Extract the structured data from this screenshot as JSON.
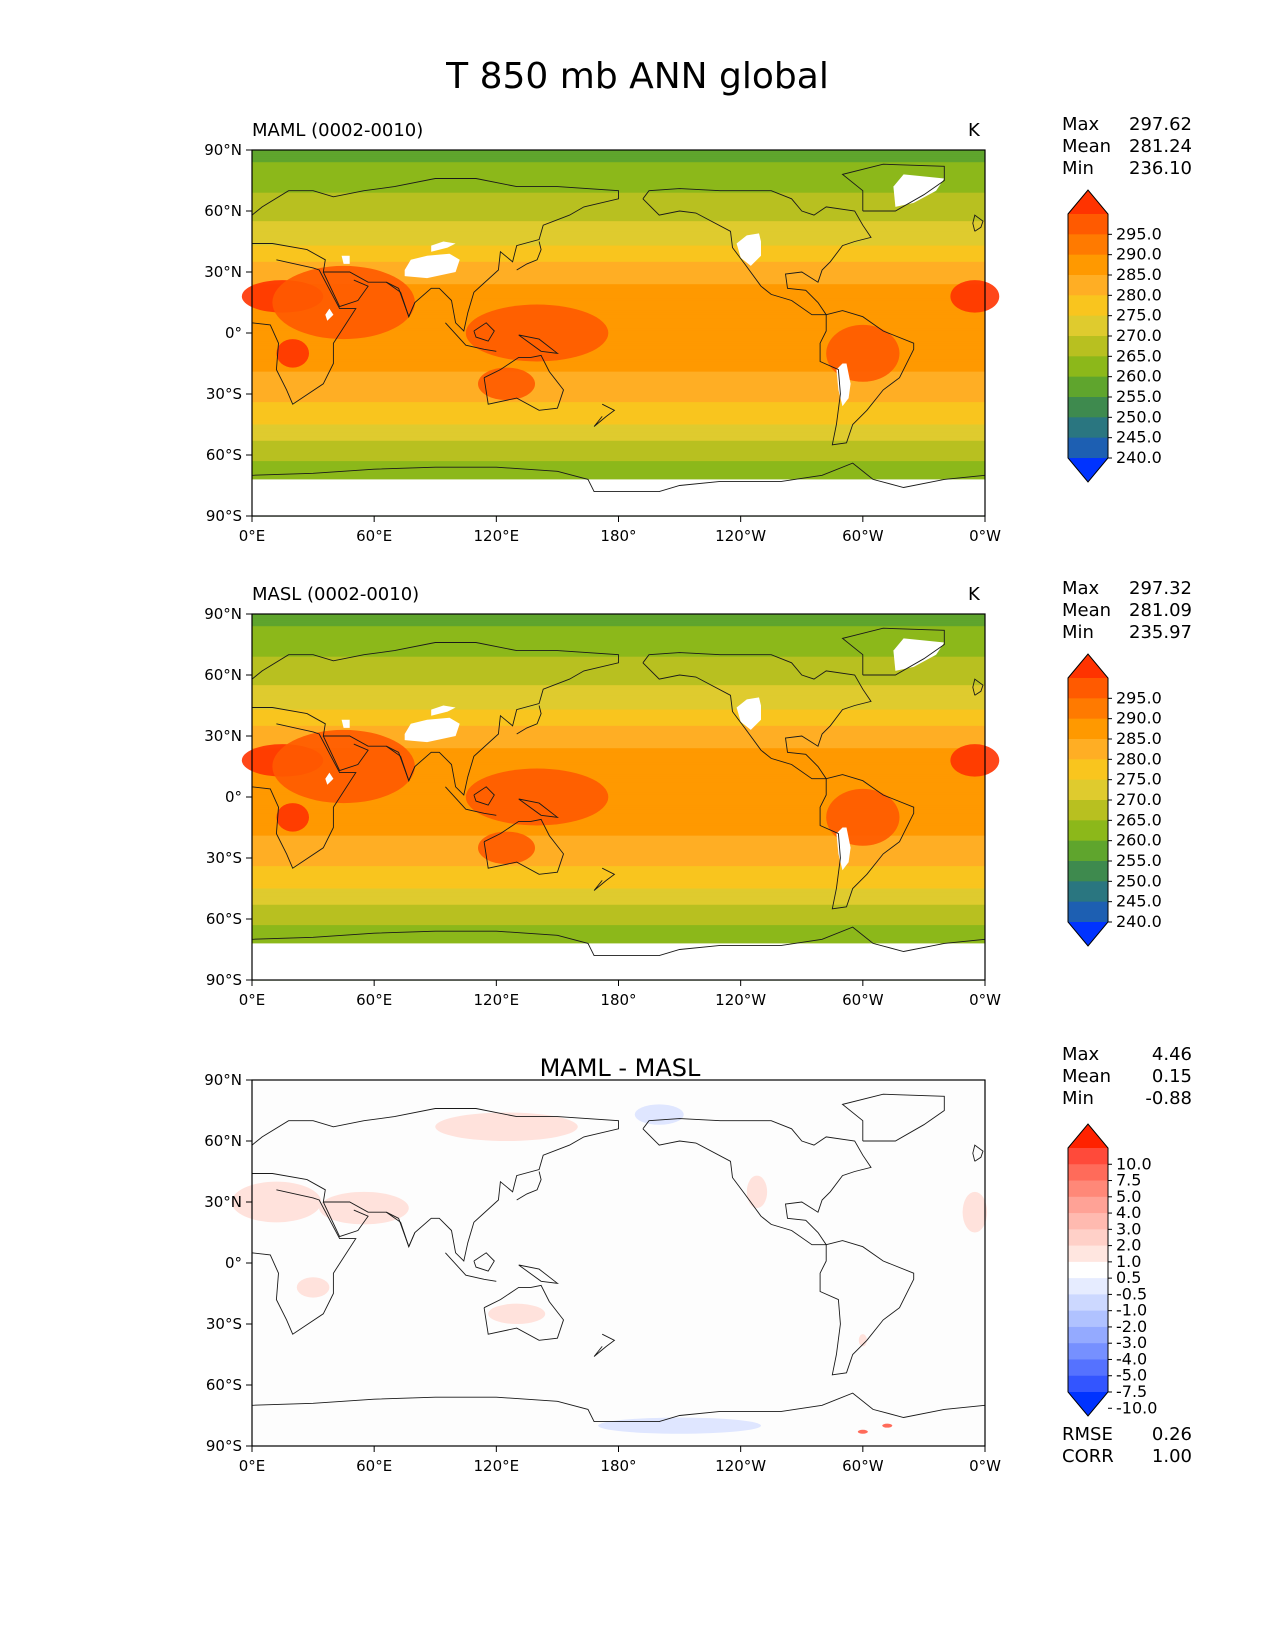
{
  "suptitle": "T 850 mb ANN global",
  "x_ticks": [
    "0°E",
    "60°E",
    "120°E",
    "180°",
    "120°W",
    "60°W",
    "0°W"
  ],
  "y_ticks": [
    "90°N",
    "60°N",
    "30°N",
    "0°",
    "30°S",
    "60°S",
    "90°S"
  ],
  "panels": [
    {
      "left_title": "MAML (0002-0010)",
      "center_title": "",
      "units": "K",
      "stats": {
        "max_label": "Max",
        "max": "297.62",
        "mean_label": "Mean",
        "mean": "281.24",
        "min_label": "Min",
        "min": "236.10"
      },
      "colorbar": {
        "labels": [
          "295.0",
          "290.0",
          "285.0",
          "280.0",
          "275.0",
          "270.0",
          "265.0",
          "260.0",
          "255.0",
          "250.0",
          "245.0",
          "240.0"
        ],
        "colors": [
          "#ff3300",
          "#ff5a00",
          "#ff7a00",
          "#ff9900",
          "#ffae24",
          "#f9c51e",
          "#dfcb2e",
          "#b8c020",
          "#8cb81a",
          "#5fa52d",
          "#3e8a4e",
          "#2a7680",
          "#1d5fb2",
          "#0033ff"
        ]
      }
    },
    {
      "left_title": "MASL (0002-0010)",
      "center_title": "",
      "units": "K",
      "stats": {
        "max_label": "Max",
        "max": "297.32",
        "mean_label": "Mean",
        "mean": "281.09",
        "min_label": "Min",
        "min": "235.97"
      },
      "colorbar": {
        "labels": [
          "295.0",
          "290.0",
          "285.0",
          "280.0",
          "275.0",
          "270.0",
          "265.0",
          "260.0",
          "255.0",
          "250.0",
          "245.0",
          "240.0"
        ],
        "colors": [
          "#ff3300",
          "#ff5a00",
          "#ff7a00",
          "#ff9900",
          "#ffae24",
          "#f9c51e",
          "#dfcb2e",
          "#b8c020",
          "#8cb81a",
          "#5fa52d",
          "#3e8a4e",
          "#2a7680",
          "#1d5fb2",
          "#0033ff"
        ]
      }
    },
    {
      "left_title": "",
      "center_title": "MAML - MASL",
      "units": "",
      "stats": {
        "max_label": "Max",
        "max": "4.46",
        "mean_label": "Mean",
        "mean": "0.15",
        "min_label": "Min",
        "min": "-0.88"
      },
      "colorbar": {
        "labels": [
          "10.0",
          "7.5",
          "5.0",
          "4.0",
          "3.0",
          "2.0",
          "1.0",
          "0.5",
          "-0.5",
          "-1.0",
          "-2.0",
          "-3.0",
          "-4.0",
          "-5.0",
          "-7.5",
          "-10.0"
        ],
        "colors": [
          "#ff2200",
          "#ff4a3a",
          "#ff6b5a",
          "#ff8878",
          "#ffa296",
          "#ffbab0",
          "#ffd0c8",
          "#ffe6e0",
          "#ffffff",
          "#e6ecff",
          "#ccd8ff",
          "#b0c2ff",
          "#94aaff",
          "#7690ff",
          "#5572ff",
          "#3355ff",
          "#0033ff"
        ]
      },
      "footer": {
        "rmse_label": "RMSE",
        "rmse": "0.26",
        "corr_label": "CORR",
        "corr": "1.00"
      }
    }
  ],
  "chart_data": [
    {
      "type": "heatmap",
      "title": "MAML (0002-0010)",
      "units": "K",
      "xlim": [
        0,
        360
      ],
      "ylim": [
        -90,
        90
      ],
      "zonal_mean_profile": {
        "lat": [
          90,
          75,
          60,
          45,
          30,
          15,
          0,
          -15,
          -30,
          -45,
          -60,
          -70,
          -90
        ],
        "value": [
          258,
          263,
          268,
          274,
          283,
          288,
          286,
          286,
          282,
          275,
          266,
          262,
          255
        ]
      },
      "stats": {
        "max": 297.62,
        "mean": 281.24,
        "min": 236.1
      },
      "levels": [
        240,
        245,
        250,
        255,
        260,
        265,
        270,
        275,
        280,
        285,
        290,
        295
      ]
    },
    {
      "type": "heatmap",
      "title": "MASL (0002-0010)",
      "units": "K",
      "xlim": [
        0,
        360
      ],
      "ylim": [
        -90,
        90
      ],
      "zonal_mean_profile": {
        "lat": [
          90,
          75,
          60,
          45,
          30,
          15,
          0,
          -15,
          -30,
          -45,
          -60,
          -70,
          -90
        ],
        "value": [
          258,
          263,
          268,
          274,
          283,
          288,
          286,
          286,
          282,
          275,
          266,
          262,
          255
        ]
      },
      "stats": {
        "max": 297.32,
        "mean": 281.09,
        "min": 235.97
      },
      "levels": [
        240,
        245,
        250,
        255,
        260,
        265,
        270,
        275,
        280,
        285,
        290,
        295
      ]
    },
    {
      "type": "heatmap",
      "title": "MAML - MASL",
      "xlim": [
        0,
        360
      ],
      "ylim": [
        -90,
        90
      ],
      "stats": {
        "max": 4.46,
        "mean": 0.15,
        "min": -0.88,
        "rmse": 0.26,
        "corr": 1.0
      },
      "levels": [
        -10,
        -7.5,
        -5,
        -4,
        -3,
        -2,
        -1,
        -0.5,
        0.5,
        1,
        2,
        3,
        4,
        5,
        7.5,
        10
      ]
    }
  ]
}
